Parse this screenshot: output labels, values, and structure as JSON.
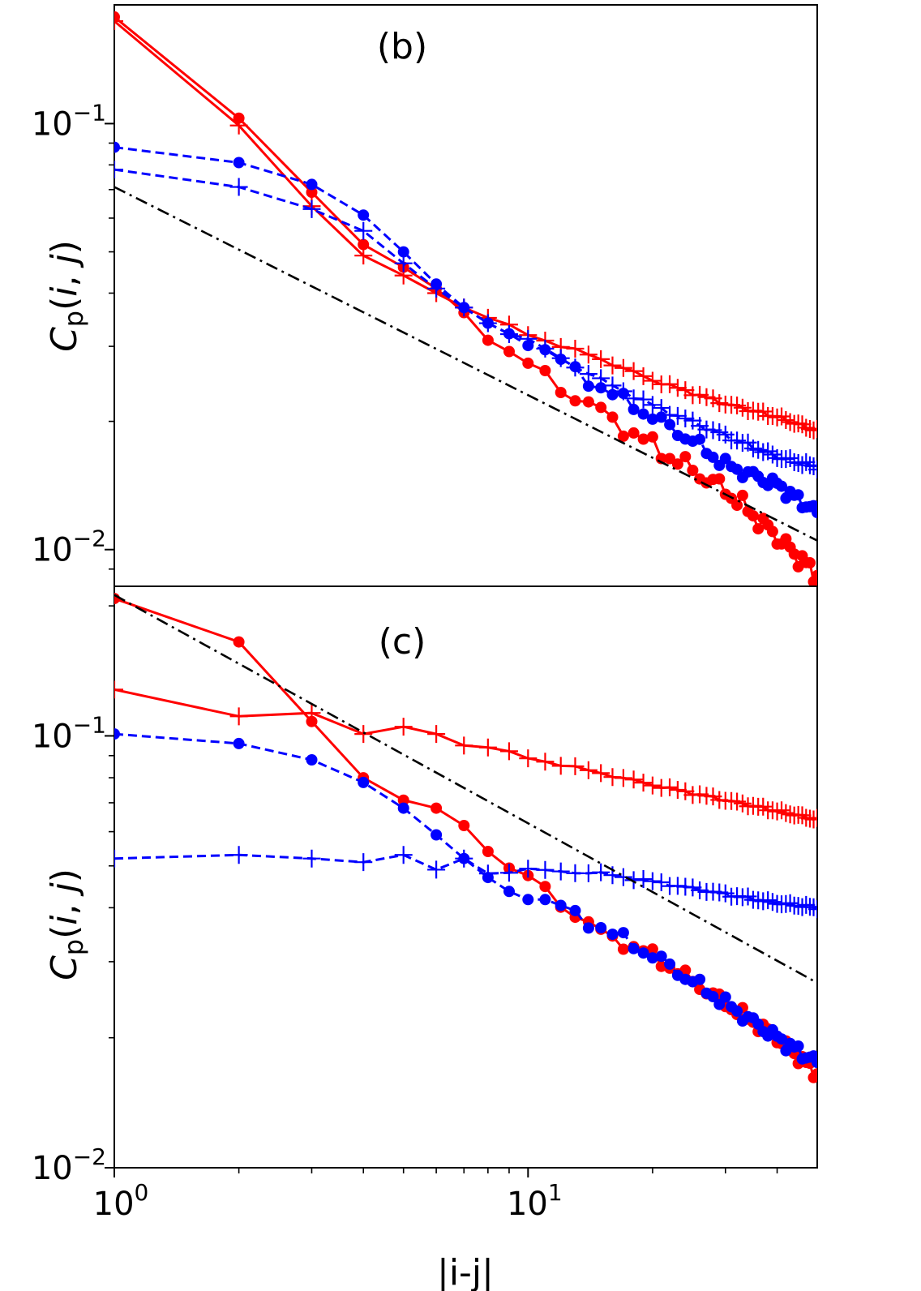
{
  "chart_data": [
    {
      "type": "line",
      "panel_label": "(b)",
      "xscale": "log",
      "yscale": "log",
      "xlim": [
        1,
        50
      ],
      "ylim": [
        0.0082,
        0.19
      ],
      "ylabel": "C_p(i,j)",
      "ylabel_parts": {
        "main": "C",
        "sub": "p",
        "args": "(i, j)",
        "arg_i": "i",
        "arg_j": "j"
      },
      "yticks": [
        {
          "value": 0.1,
          "base": "10",
          "exp": "−1"
        },
        {
          "value": 0.01,
          "base": "10",
          "exp": "−2"
        }
      ],
      "series": [
        {
          "name": "red-dots",
          "color": "#ff0000",
          "dash": "solid",
          "marker": "circle",
          "anchors": [
            [
              1,
              0.178
            ],
            [
              2,
              0.103
            ],
            [
              3,
              0.069
            ],
            [
              4,
              0.052
            ],
            [
              5,
              0.046
            ],
            [
              6,
              0.041
            ],
            [
              7,
              0.036
            ],
            [
              8,
              0.031
            ],
            [
              10,
              0.027
            ],
            [
              15,
              0.021
            ],
            [
              20,
              0.0175
            ],
            [
              30,
              0.0138
            ],
            [
              40,
              0.0107
            ],
            [
              50,
              0.0087
            ]
          ],
          "wiggle": 0.05
        },
        {
          "name": "red-plus",
          "color": "#ff0000",
          "dash": "solid",
          "marker": "plus",
          "anchors": [
            [
              1,
              0.174
            ],
            [
              2,
              0.099
            ],
            [
              3,
              0.064
            ],
            [
              4,
              0.049
            ],
            [
              5,
              0.044
            ],
            [
              6,
              0.04
            ],
            [
              7,
              0.037
            ],
            [
              8,
              0.035
            ],
            [
              10,
              0.032
            ],
            [
              15,
              0.028
            ],
            [
              20,
              0.025
            ],
            [
              30,
              0.022
            ],
            [
              40,
              0.0205
            ],
            [
              50,
              0.019
            ]
          ],
          "wiggle": 0.01
        },
        {
          "name": "blue-dots",
          "color": "#0000ff",
          "dash": "dashed",
          "marker": "circle",
          "anchors": [
            [
              1,
              0.088
            ],
            [
              2,
              0.081
            ],
            [
              3,
              0.072
            ],
            [
              4,
              0.061
            ],
            [
              5,
              0.05
            ],
            [
              6,
              0.042
            ],
            [
              7,
              0.037
            ],
            [
              8,
              0.034
            ],
            [
              10,
              0.031
            ],
            [
              15,
              0.024
            ],
            [
              20,
              0.0205
            ],
            [
              25,
              0.018
            ],
            [
              30,
              0.0158
            ],
            [
              40,
              0.0142
            ],
            [
              50,
              0.0122
            ]
          ],
          "wiggle": 0.035
        },
        {
          "name": "blue-plus",
          "color": "#0000ff",
          "dash": "dashed",
          "marker": "plus",
          "anchors": [
            [
              1,
              0.078
            ],
            [
              2,
              0.071
            ],
            [
              3,
              0.063
            ],
            [
              4,
              0.056
            ],
            [
              5,
              0.047
            ],
            [
              6,
              0.041
            ],
            [
              7,
              0.037
            ],
            [
              8,
              0.034
            ],
            [
              10,
              0.031
            ],
            [
              15,
              0.025
            ],
            [
              20,
              0.0218
            ],
            [
              30,
              0.0185
            ],
            [
              40,
              0.0165
            ],
            [
              50,
              0.0156
            ]
          ],
          "wiggle": 0.012
        },
        {
          "name": "power-law-reference",
          "color": "#000000",
          "dash": "dashdot",
          "marker": "none",
          "anchors": [
            [
              1,
              0.071
            ],
            [
              50,
              0.0105
            ]
          ],
          "wiggle": 0
        }
      ]
    },
    {
      "type": "line",
      "panel_label": "(c)",
      "xscale": "log",
      "yscale": "log",
      "xlim": [
        1,
        50
      ],
      "ylim": [
        0.01,
        0.222
      ],
      "xlabel": "|i-j|",
      "ylabel": "C_p(i,j)",
      "ylabel_parts": {
        "main": "C",
        "sub": "p",
        "args": "(i, j)",
        "arg_i": "i",
        "arg_j": "j"
      },
      "xticks": [
        {
          "value": 1,
          "base": "10",
          "exp": "0"
        },
        {
          "value": 10,
          "base": "10",
          "exp": "1"
        }
      ],
      "yticks": [
        {
          "value": 0.1,
          "base": "10",
          "exp": "−1"
        },
        {
          "value": 0.01,
          "base": "10",
          "exp": "−2"
        }
      ],
      "series": [
        {
          "name": "red-dots",
          "color": "#ff0000",
          "dash": "solid",
          "marker": "circle",
          "anchors": [
            [
              1,
              0.208
            ],
            [
              2,
              0.165
            ],
            [
              3,
              0.108
            ],
            [
              4,
              0.08
            ],
            [
              5,
              0.071
            ],
            [
              6,
              0.068
            ],
            [
              7,
              0.062
            ],
            [
              8,
              0.054
            ],
            [
              9,
              0.049
            ],
            [
              10,
              0.047
            ],
            [
              12,
              0.041
            ],
            [
              15,
              0.035
            ],
            [
              20,
              0.031
            ],
            [
              25,
              0.027
            ],
            [
              30,
              0.024
            ],
            [
              40,
              0.02
            ],
            [
              50,
              0.0165
            ]
          ],
          "wiggle": 0.035
        },
        {
          "name": "red-plus",
          "color": "#ff0000",
          "dash": "solid",
          "marker": "plus",
          "anchors": [
            [
              1,
              0.128
            ],
            [
              2,
              0.111
            ],
            [
              3,
              0.113
            ],
            [
              4,
              0.101
            ],
            [
              5,
              0.105
            ],
            [
              6,
              0.101
            ],
            [
              7,
              0.095
            ],
            [
              8,
              0.094
            ],
            [
              10,
              0.089
            ],
            [
              15,
              0.082
            ],
            [
              20,
              0.077
            ],
            [
              30,
              0.071
            ],
            [
              40,
              0.067
            ],
            [
              50,
              0.064
            ]
          ],
          "wiggle": 0.008
        },
        {
          "name": "blue-dots",
          "color": "#0000ff",
          "dash": "dashed",
          "marker": "circle",
          "anchors": [
            [
              1,
              0.101
            ],
            [
              2,
              0.096
            ],
            [
              3,
              0.088
            ],
            [
              4,
              0.078
            ],
            [
              5,
              0.068
            ],
            [
              6,
              0.059
            ],
            [
              7,
              0.052
            ],
            [
              8,
              0.047
            ],
            [
              9,
              0.044
            ],
            [
              10,
              0.043
            ],
            [
              12,
              0.04
            ],
            [
              15,
              0.036
            ],
            [
              20,
              0.031
            ],
            [
              25,
              0.027
            ],
            [
              30,
              0.024
            ],
            [
              40,
              0.02
            ],
            [
              50,
              0.0175
            ]
          ],
          "wiggle": 0.035
        },
        {
          "name": "blue-plus",
          "color": "#0000ff",
          "dash": "dashed",
          "marker": "plus",
          "anchors": [
            [
              1,
              0.052
            ],
            [
              2,
              0.053
            ],
            [
              3,
              0.052
            ],
            [
              4,
              0.051
            ],
            [
              5,
              0.053
            ],
            [
              6,
              0.049
            ],
            [
              7,
              0.052
            ],
            [
              8,
              0.048
            ],
            [
              10,
              0.049
            ],
            [
              15,
              0.048
            ],
            [
              20,
              0.046
            ],
            [
              30,
              0.043
            ],
            [
              40,
              0.041
            ],
            [
              50,
              0.04
            ]
          ],
          "wiggle": 0.008
        },
        {
          "name": "power-law-reference",
          "color": "#000000",
          "dash": "dashdot",
          "marker": "none",
          "anchors": [
            [
              1,
              0.212
            ],
            [
              50,
              0.0268
            ]
          ],
          "wiggle": 0
        }
      ]
    }
  ]
}
